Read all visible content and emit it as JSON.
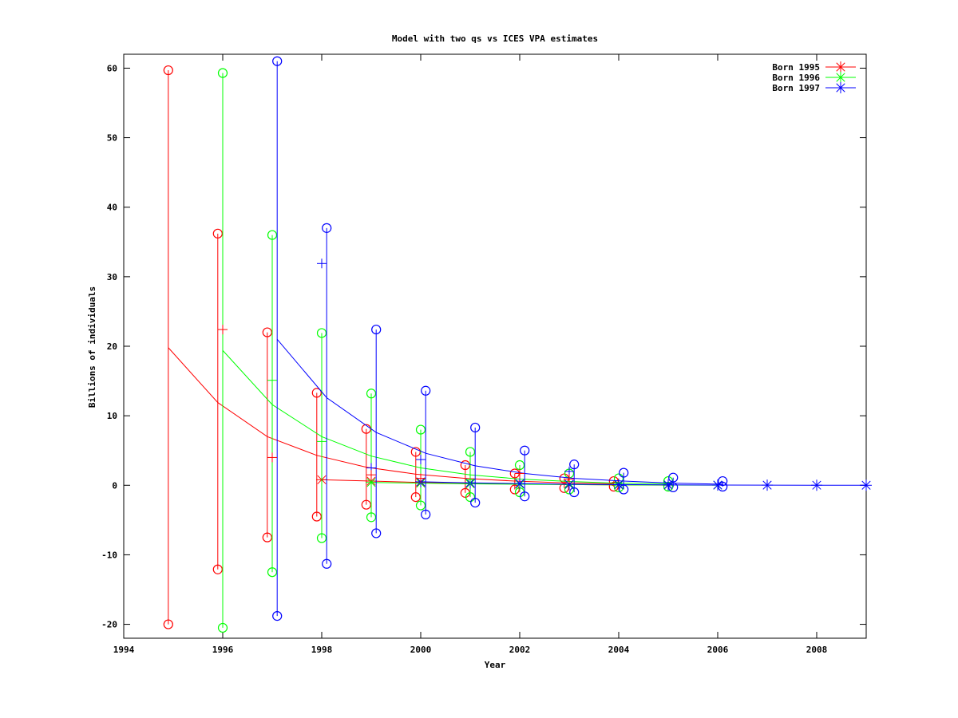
{
  "chart_data": {
    "type": "line",
    "title": "Model with two qs vs ICES VPA estimates",
    "xlabel": "Year",
    "ylabel": "Billions of individuals",
    "xlim": [
      1994,
      2009
    ],
    "ylim": [
      -22,
      62
    ],
    "xticks": [
      1994,
      1996,
      1998,
      2000,
      2002,
      2004,
      2006,
      2008
    ],
    "yticks": [
      -20,
      -10,
      0,
      10,
      20,
      30,
      40,
      50,
      60
    ],
    "grid": false,
    "legend_position": "top-right",
    "colors": {
      "Born 1995": "#ff0000",
      "Born 1996": "#00ff00",
      "Born 1997": "#0000ff"
    },
    "series": [
      {
        "name": "Born 1995",
        "color": "#ff0000",
        "model_line": {
          "x": [
            1994.9,
            1995.9,
            1996.9,
            1997.9,
            1998.9,
            1999.9,
            2000.9,
            2001.9,
            2002.9,
            2003.9
          ],
          "y": [
            19.8,
            11.9,
            7.0,
            4.3,
            2.6,
            1.6,
            1.0,
            0.6,
            0.35,
            0.2
          ]
        },
        "error_bars": [
          {
            "x": 1994.9,
            "low": -20.0,
            "high": 59.7
          },
          {
            "x": 1995.9,
            "low": -12.1,
            "high": 36.2
          },
          {
            "x": 1996.9,
            "low": -7.5,
            "high": 22.0
          },
          {
            "x": 1997.9,
            "low": -4.5,
            "high": 13.3
          },
          {
            "x": 1998.9,
            "low": -2.8,
            "high": 8.1
          },
          {
            "x": 1999.9,
            "low": -1.7,
            "high": 4.8
          },
          {
            "x": 2000.9,
            "low": -1.1,
            "high": 2.9
          },
          {
            "x": 2001.9,
            "low": -0.6,
            "high": 1.7
          },
          {
            "x": 2002.9,
            "low": -0.4,
            "high": 1.0
          },
          {
            "x": 2003.9,
            "low": -0.2,
            "high": 0.6
          }
        ],
        "vpa": {
          "x": [
            1998,
            1999,
            2000,
            2001,
            2002,
            2003,
            2004,
            2005
          ],
          "y": [
            0.8,
            0.6,
            0.4,
            0.3,
            0.2,
            0.1,
            0.05,
            0.02
          ]
        }
      },
      {
        "name": "Born 1996",
        "color": "#00ff00",
        "model_line": {
          "x": [
            1996.0,
            1997.0,
            1998.0,
            1999.0,
            2000.0,
            2001.0,
            2002.0,
            2003.0,
            2004.0,
            2005.0
          ],
          "y": [
            19.4,
            11.6,
            7.0,
            4.2,
            2.5,
            1.5,
            0.9,
            0.55,
            0.3,
            0.2
          ]
        },
        "error_bars": [
          {
            "x": 1996.0,
            "low": -20.5,
            "high": 59.3
          },
          {
            "x": 1997.0,
            "low": -12.5,
            "high": 36.0
          },
          {
            "x": 1998.0,
            "low": -7.6,
            "high": 21.9
          },
          {
            "x": 1999.0,
            "low": -4.6,
            "high": 13.2
          },
          {
            "x": 2000.0,
            "low": -2.9,
            "high": 8.0
          },
          {
            "x": 2001.0,
            "low": -1.7,
            "high": 4.8
          },
          {
            "x": 2002.0,
            "low": -1.0,
            "high": 2.9
          },
          {
            "x": 2003.0,
            "low": -0.6,
            "high": 1.7
          },
          {
            "x": 2004.0,
            "low": -0.3,
            "high": 1.0
          },
          {
            "x": 2005.0,
            "low": -0.2,
            "high": 0.6
          }
        ],
        "vpa": {
          "x": [
            1999,
            2000,
            2001,
            2002,
            2003,
            2004,
            2005,
            2006
          ],
          "y": [
            0.4,
            0.3,
            0.2,
            0.15,
            0.1,
            0.05,
            0.03,
            0.02
          ]
        }
      },
      {
        "name": "Born 1997",
        "color": "#0000ff",
        "model_line": {
          "x": [
            1997.1,
            1998.1,
            1999.1,
            2000.1,
            2001.1,
            2002.1,
            2003.1,
            2004.1,
            2005.1,
            2006.1
          ],
          "y": [
            21.0,
            12.6,
            7.6,
            4.6,
            2.8,
            1.7,
            1.0,
            0.6,
            0.3,
            0.15
          ]
        },
        "error_bars": [
          {
            "x": 1997.1,
            "low": -18.8,
            "high": 61.0
          },
          {
            "x": 1998.1,
            "low": -11.3,
            "high": 37.0
          },
          {
            "x": 1999.1,
            "low": -6.9,
            "high": 22.4
          },
          {
            "x": 2000.1,
            "low": -4.2,
            "high": 13.6
          },
          {
            "x": 2001.1,
            "low": -2.5,
            "high": 8.3
          },
          {
            "x": 2002.1,
            "low": -1.6,
            "high": 5.0
          },
          {
            "x": 2003.1,
            "low": -1.0,
            "high": 3.0
          },
          {
            "x": 2004.1,
            "low": -0.6,
            "high": 1.8
          },
          {
            "x": 2005.1,
            "low": -0.3,
            "high": 1.1
          },
          {
            "x": 2006.1,
            "low": -0.2,
            "high": 0.6
          }
        ],
        "vpa": {
          "x": [
            2000,
            2001,
            2002,
            2003,
            2004,
            2005,
            2006,
            2007,
            2008,
            2009
          ],
          "y": [
            0.5,
            0.35,
            0.25,
            0.15,
            0.1,
            0.06,
            0.03,
            0.02,
            0.01,
            0.0
          ]
        }
      }
    ],
    "crosses": [
      {
        "x": 1996.0,
        "y": 22.4,
        "color": "#ff0000"
      },
      {
        "x": 1997.0,
        "y": 4.0,
        "color": "#ff0000"
      },
      {
        "x": 1997.0,
        "y": 15.1,
        "color": "#00ff00"
      },
      {
        "x": 1998.0,
        "y": 31.9,
        "color": "#0000ff"
      },
      {
        "x": 1998.0,
        "y": 6.3,
        "color": "#00ff00"
      },
      {
        "x": 1999.0,
        "y": 2.5,
        "color": "#0000ff"
      },
      {
        "x": 1999.0,
        "y": 1.5,
        "color": "#ff0000"
      },
      {
        "x": 2000.0,
        "y": 3.7,
        "color": "#0000ff"
      },
      {
        "x": 2000.0,
        "y": 1.0,
        "color": "#ff0000"
      },
      {
        "x": 2001.0,
        "y": 0.8,
        "color": "#00ff00"
      },
      {
        "x": 2002.0,
        "y": 1.7,
        "color": "#ff0000"
      },
      {
        "x": 2003.0,
        "y": 2.0,
        "color": "#0000ff"
      },
      {
        "x": 2003.0,
        "y": 0.9,
        "color": "#ff0000"
      }
    ]
  }
}
